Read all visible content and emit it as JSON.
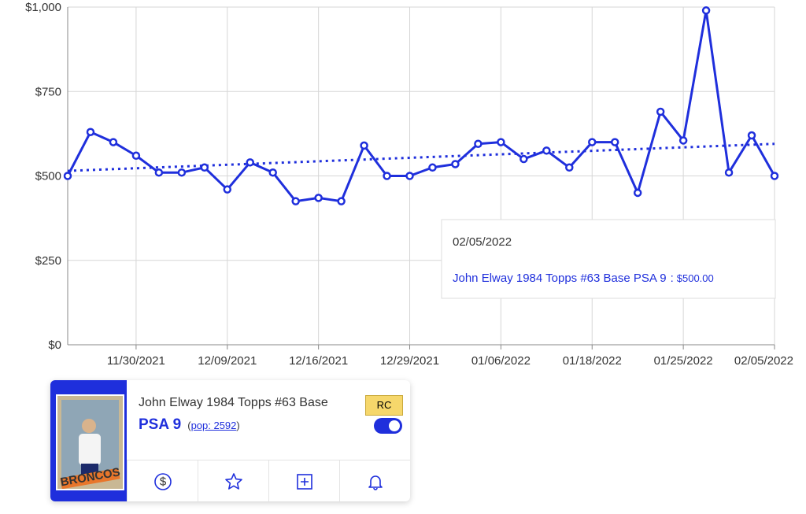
{
  "chart_data": {
    "type": "line",
    "categories": [
      null,
      null,
      null,
      "11/30/2021",
      null,
      null,
      null,
      "12/09/2021",
      null,
      null,
      null,
      "12/16/2021",
      null,
      null,
      null,
      "12/29/2021",
      null,
      null,
      null,
      "01/06/2022",
      null,
      null,
      null,
      "01/18/2022",
      null,
      null,
      null,
      "01/25/2022",
      null,
      null,
      null,
      "02/05/2022"
    ],
    "series": [
      {
        "name": "John Elway 1984 Topps #63 Base PSA 9",
        "color": "#1f2fdc",
        "values": [
          500,
          630,
          600,
          560,
          510,
          510,
          525,
          460,
          540,
          510,
          425,
          435,
          425,
          590,
          500,
          500,
          525,
          535,
          595,
          600,
          550,
          575,
          525,
          600,
          600,
          450,
          690,
          605,
          990,
          510,
          620,
          500
        ]
      }
    ],
    "trend": [
      515,
      595
    ],
    "ylim": [
      0,
      1000
    ],
    "yticks": [
      {
        "value": 0,
        "label": "$0"
      },
      {
        "value": 250,
        "label": "$250"
      },
      {
        "value": 500,
        "label": "$500"
      },
      {
        "value": 750,
        "label": "$750"
      },
      {
        "value": 1000,
        "label": "$1,000"
      }
    ],
    "grid": true,
    "tooltip": {
      "separator": ":",
      "value_label": "$500.00"
    }
  },
  "card": {
    "title": "John Elway 1984 Topps #63 Base",
    "grade": "PSA 9",
    "pop_open": "(",
    "pop": "pop: 2592",
    "pop_close": ")",
    "badge": "RC",
    "image_text": "BRONCOS",
    "icon_dollar": "$"
  }
}
